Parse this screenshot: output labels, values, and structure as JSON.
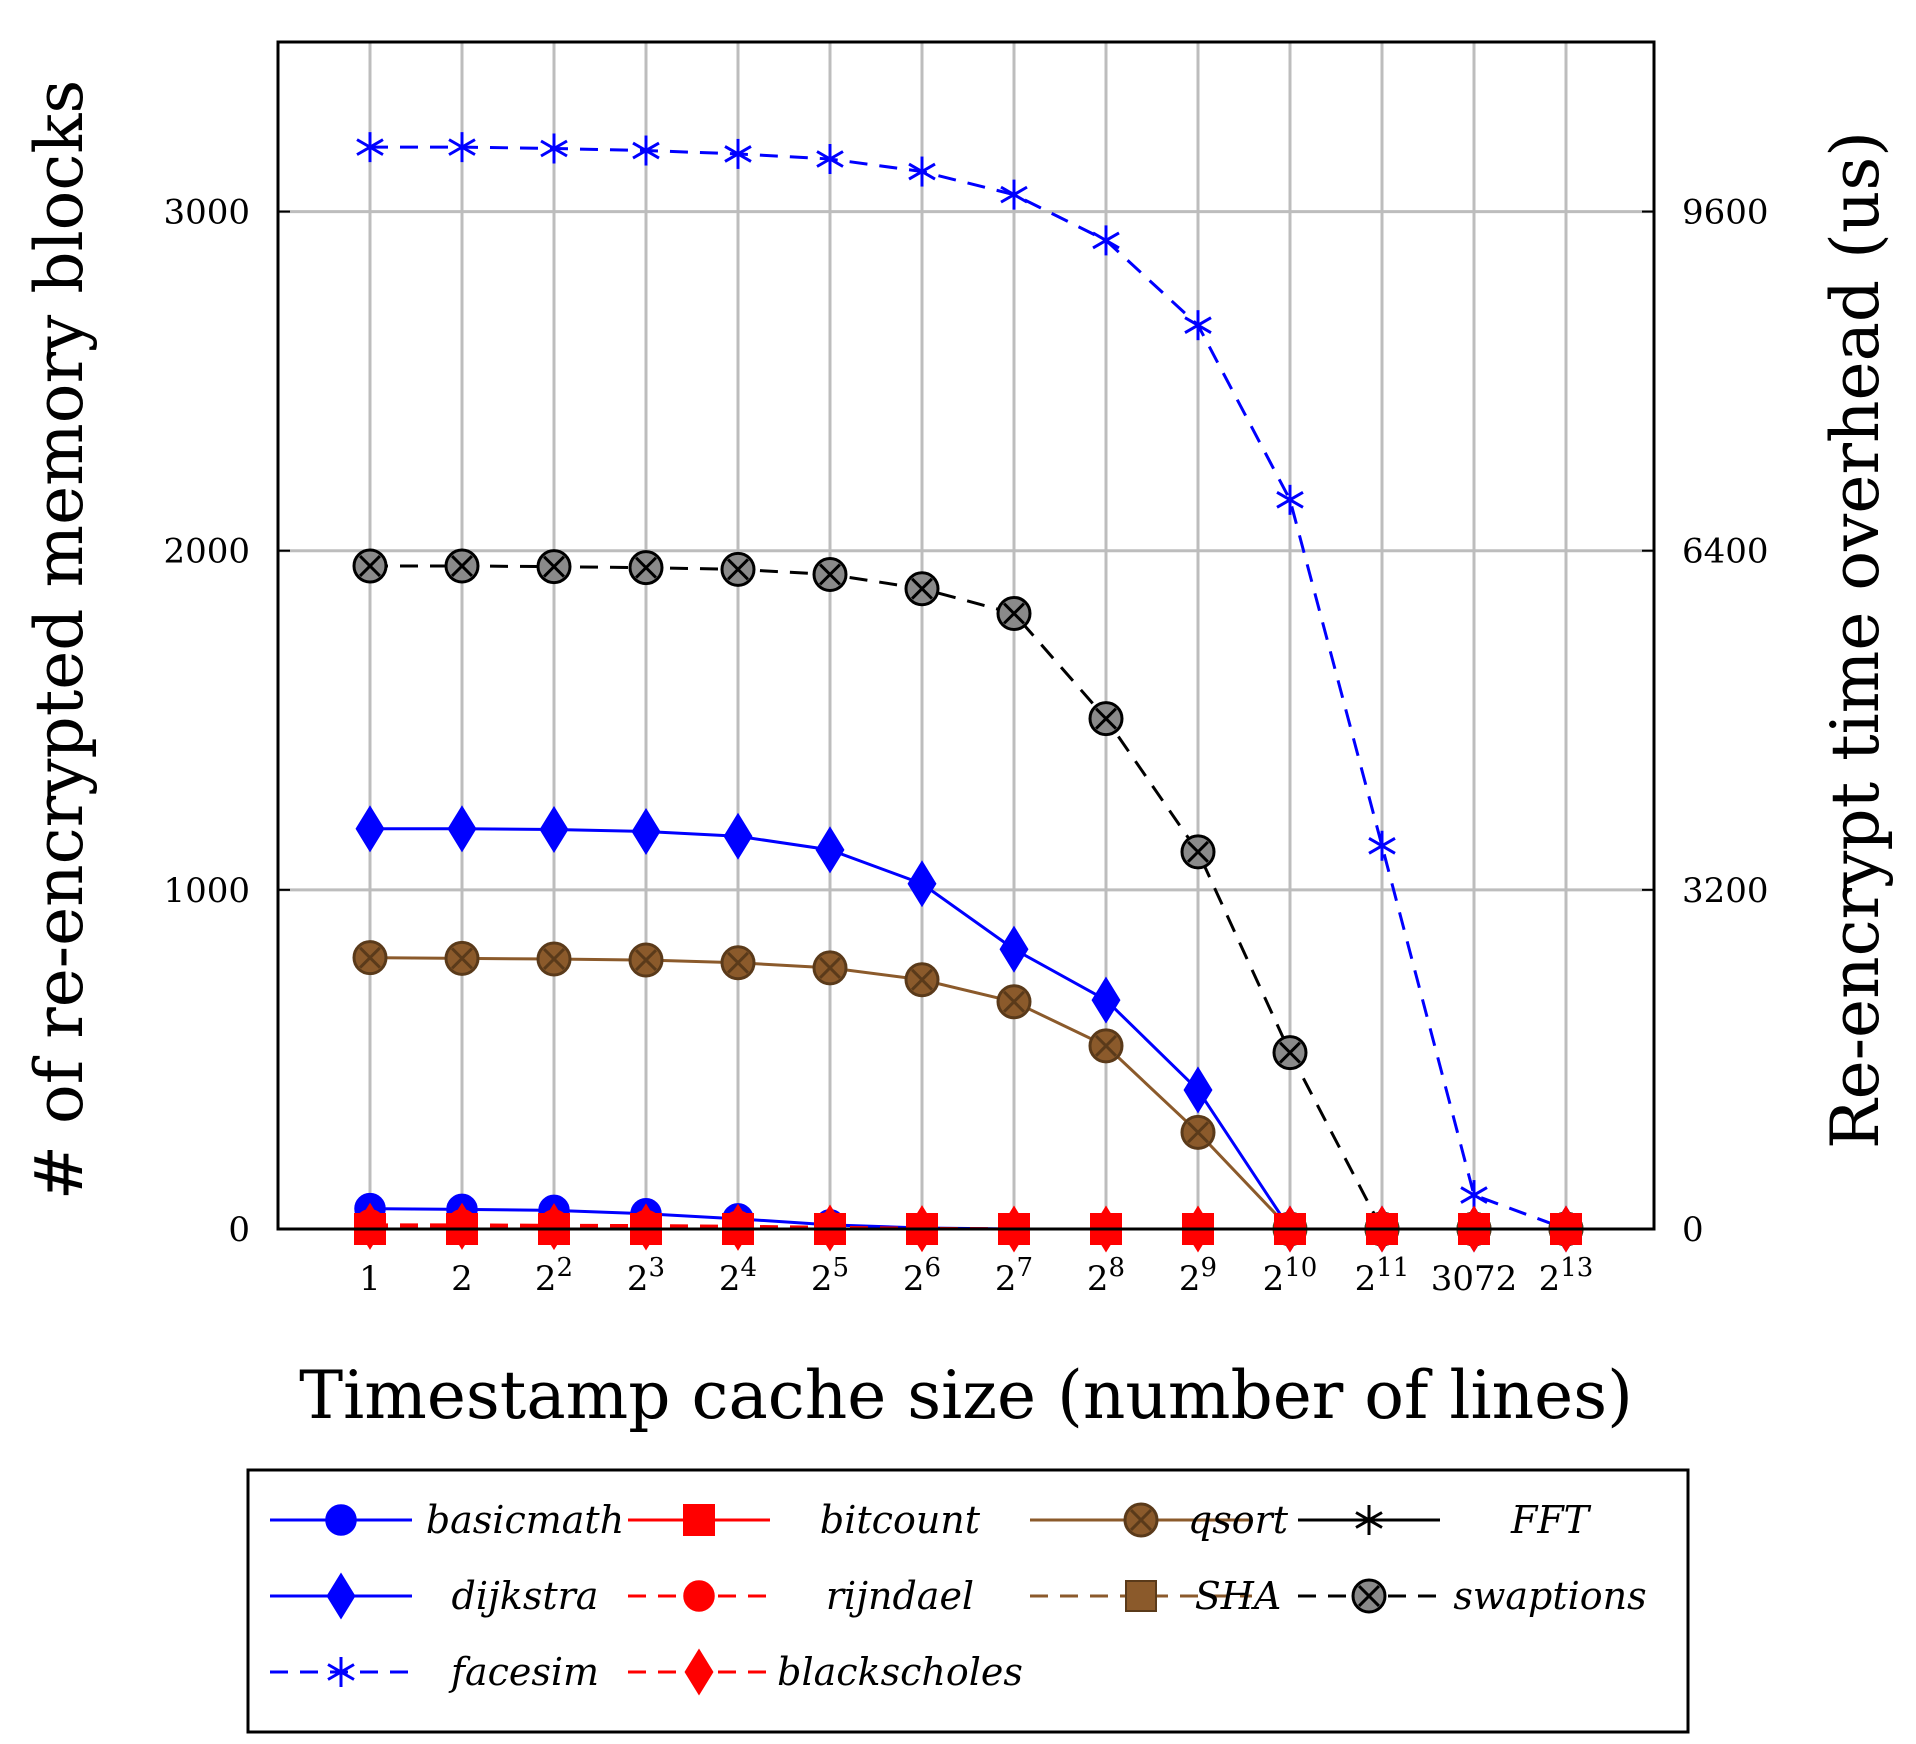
{
  "chart_data": {
    "type": "line",
    "title": "",
    "xlabel": "Timestamp cache size (number of lines)",
    "ylabel": "# of re-encrypted memory blocks",
    "y2label": "Re-encrypt time overhead (us)",
    "grid": true,
    "legend_position": "bottom",
    "categories": [
      {
        "base": "1",
        "exp": ""
      },
      {
        "base": "2",
        "exp": ""
      },
      {
        "base": "2",
        "exp": "2"
      },
      {
        "base": "2",
        "exp": "3"
      },
      {
        "base": "2",
        "exp": "4"
      },
      {
        "base": "2",
        "exp": "5"
      },
      {
        "base": "2",
        "exp": "6"
      },
      {
        "base": "2",
        "exp": "7"
      },
      {
        "base": "2",
        "exp": "8"
      },
      {
        "base": "2",
        "exp": "9"
      },
      {
        "base": "2",
        "exp": "10"
      },
      {
        "base": "2",
        "exp": "11"
      },
      {
        "base": "3072",
        "exp": ""
      },
      {
        "base": "2",
        "exp": "13"
      }
    ],
    "ylim": [
      0,
      3500
    ],
    "yticks": [
      0,
      1000,
      2000,
      3000
    ],
    "y2lim": [
      0,
      11200
    ],
    "y2ticks": [
      0,
      3200,
      6400,
      9600
    ],
    "series": [
      {
        "name": "basicmath",
        "color": "#0000ff",
        "dash": "solid",
        "marker": "circle",
        "values": [
          60,
          58,
          55,
          45,
          30,
          12,
          3,
          0,
          0,
          0,
          0,
          0,
          0,
          0
        ]
      },
      {
        "name": "bitcount",
        "color": "#ff0000",
        "dash": "solid",
        "marker": "square",
        "values": [
          0,
          0,
          0,
          0,
          0,
          0,
          0,
          0,
          0,
          0,
          0,
          0,
          0,
          0
        ]
      },
      {
        "name": "qsort",
        "color": "#8b5a2b",
        "dash": "solid",
        "marker": "otimes",
        "values": [
          800,
          798,
          796,
          793,
          785,
          770,
          735,
          670,
          540,
          285,
          0,
          0,
          0,
          0
        ]
      },
      {
        "name": "FFT",
        "color": "#000000",
        "dash": "solid",
        "marker": "star",
        "values": [
          0,
          0,
          0,
          0,
          0,
          0,
          0,
          0,
          0,
          0,
          0,
          0,
          0,
          0
        ]
      },
      {
        "name": "dijkstra",
        "color": "#0000ff",
        "dash": "solid",
        "marker": "diamond",
        "values": [
          1180,
          1180,
          1178,
          1172,
          1158,
          1118,
          1018,
          825,
          675,
          410,
          0,
          0,
          0,
          0
        ]
      },
      {
        "name": "rijndael",
        "color": "#ff0000",
        "dash": "dashed",
        "marker": "circle",
        "values": [
          12,
          12,
          11,
          10,
          8,
          5,
          2,
          0,
          0,
          0,
          0,
          0,
          0,
          0
        ]
      },
      {
        "name": "SHA",
        "color": "#8b5a2b",
        "dash": "dashed",
        "marker": "square",
        "values": [
          0,
          0,
          0,
          0,
          0,
          0,
          0,
          0,
          0,
          0,
          0,
          0,
          0,
          0
        ]
      },
      {
        "name": "swaptions",
        "color": "#000000",
        "dash": "dashed",
        "marker": "otimes",
        "values": [
          1955,
          1955,
          1953,
          1950,
          1945,
          1930,
          1888,
          1815,
          1505,
          1112,
          520,
          0,
          0,
          0
        ]
      },
      {
        "name": "facesim",
        "color": "#0000ff",
        "dash": "dashed",
        "marker": "star",
        "values": [
          3190,
          3190,
          3186,
          3180,
          3170,
          3155,
          3118,
          3050,
          2915,
          2665,
          2150,
          1130,
          100,
          0
        ]
      },
      {
        "name": "blackscholes",
        "color": "#ff0000",
        "dash": "dashed",
        "marker": "diamond",
        "values": [
          8,
          8,
          7,
          6,
          5,
          3,
          1,
          0,
          0,
          0,
          0,
          0,
          0,
          0
        ]
      }
    ],
    "draw_order": [
      "swaptions",
      "facesim",
      "qsort",
      "dijkstra",
      "basicmath",
      "FFT",
      "SHA",
      "bitcount",
      "rijndael",
      "blackscholes"
    ]
  }
}
